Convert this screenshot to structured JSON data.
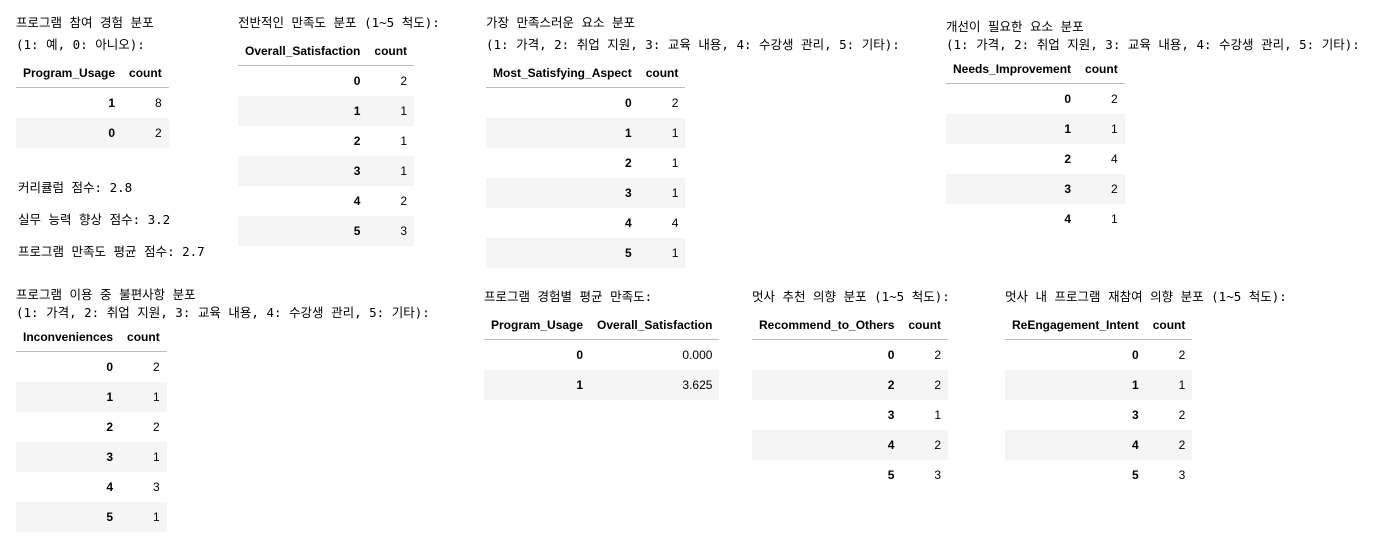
{
  "program_usage": {
    "title": "프로그램 참여 경험 분포",
    "subtitle": "(1: 예, 0: 아니오):",
    "headers": [
      "Program_Usage",
      "count"
    ],
    "rows": [
      [
        "1",
        "8"
      ],
      [
        "0",
        "2"
      ]
    ]
  },
  "scores": {
    "curriculum": "커리큘럼 점수: 2.8",
    "skill": "실무 능력 향상 점수: 3.2",
    "avg_satisfaction": "프로그램 만족도 평균 점수: 2.7"
  },
  "overall_satisfaction": {
    "title": "전반적인 만족도 분포 (1~5 척도):",
    "headers": [
      "Overall_Satisfaction",
      "count"
    ],
    "rows": [
      [
        "0",
        "2"
      ],
      [
        "1",
        "1"
      ],
      [
        "2",
        "1"
      ],
      [
        "3",
        "1"
      ],
      [
        "4",
        "2"
      ],
      [
        "5",
        "3"
      ]
    ]
  },
  "most_satisfying": {
    "title": "가장 만족스러운 요소 분포",
    "subtitle": "(1: 가격, 2: 취업 지원, 3: 교육 내용, 4: 수강생 관리, 5: 기타):",
    "headers": [
      "Most_Satisfying_Aspect",
      "count"
    ],
    "rows": [
      [
        "0",
        "2"
      ],
      [
        "1",
        "1"
      ],
      [
        "2",
        "1"
      ],
      [
        "3",
        "1"
      ],
      [
        "4",
        "4"
      ],
      [
        "5",
        "1"
      ]
    ]
  },
  "needs_improvement": {
    "title": "개선이 필요한 요소 분포",
    "subtitle": "(1: 가격, 2: 취업 지원, 3: 교육 내용, 4: 수강생 관리, 5: 기타):",
    "headers": [
      "Needs_Improvement",
      "count"
    ],
    "rows": [
      [
        "0",
        "2"
      ],
      [
        "1",
        "1"
      ],
      [
        "2",
        "4"
      ],
      [
        "3",
        "2"
      ],
      [
        "4",
        "1"
      ]
    ]
  },
  "inconveniences": {
    "title": "프로그램 이용 중 불편사항 분포",
    "subtitle": "(1: 가격, 2: 취업 지원, 3: 교육 내용, 4: 수강생 관리, 5: 기타):",
    "headers": [
      "Inconveniences",
      "count"
    ],
    "rows": [
      [
        "0",
        "2"
      ],
      [
        "1",
        "1"
      ],
      [
        "2",
        "2"
      ],
      [
        "3",
        "1"
      ],
      [
        "4",
        "3"
      ],
      [
        "5",
        "1"
      ]
    ]
  },
  "avg_by_experience": {
    "title": "프로그램 경험별 평균 만족도:",
    "headers": [
      "Program_Usage",
      "Overall_Satisfaction"
    ],
    "rows": [
      [
        "0",
        "0.000"
      ],
      [
        "1",
        "3.625"
      ]
    ]
  },
  "recommend": {
    "title": "멋사 추천 의향 분포 (1~5 척도):",
    "headers": [
      "Recommend_to_Others",
      "count"
    ],
    "rows": [
      [
        "0",
        "2"
      ],
      [
        "2",
        "2"
      ],
      [
        "3",
        "1"
      ],
      [
        "4",
        "2"
      ],
      [
        "5",
        "3"
      ]
    ]
  },
  "reengagement": {
    "title": "멋사 내 프로그램 재참여 의향 분포 (1~5 척도):",
    "headers": [
      "ReEngagement_Intent",
      "count"
    ],
    "rows": [
      [
        "0",
        "2"
      ],
      [
        "1",
        "1"
      ],
      [
        "3",
        "2"
      ],
      [
        "4",
        "2"
      ],
      [
        "5",
        "3"
      ]
    ]
  }
}
